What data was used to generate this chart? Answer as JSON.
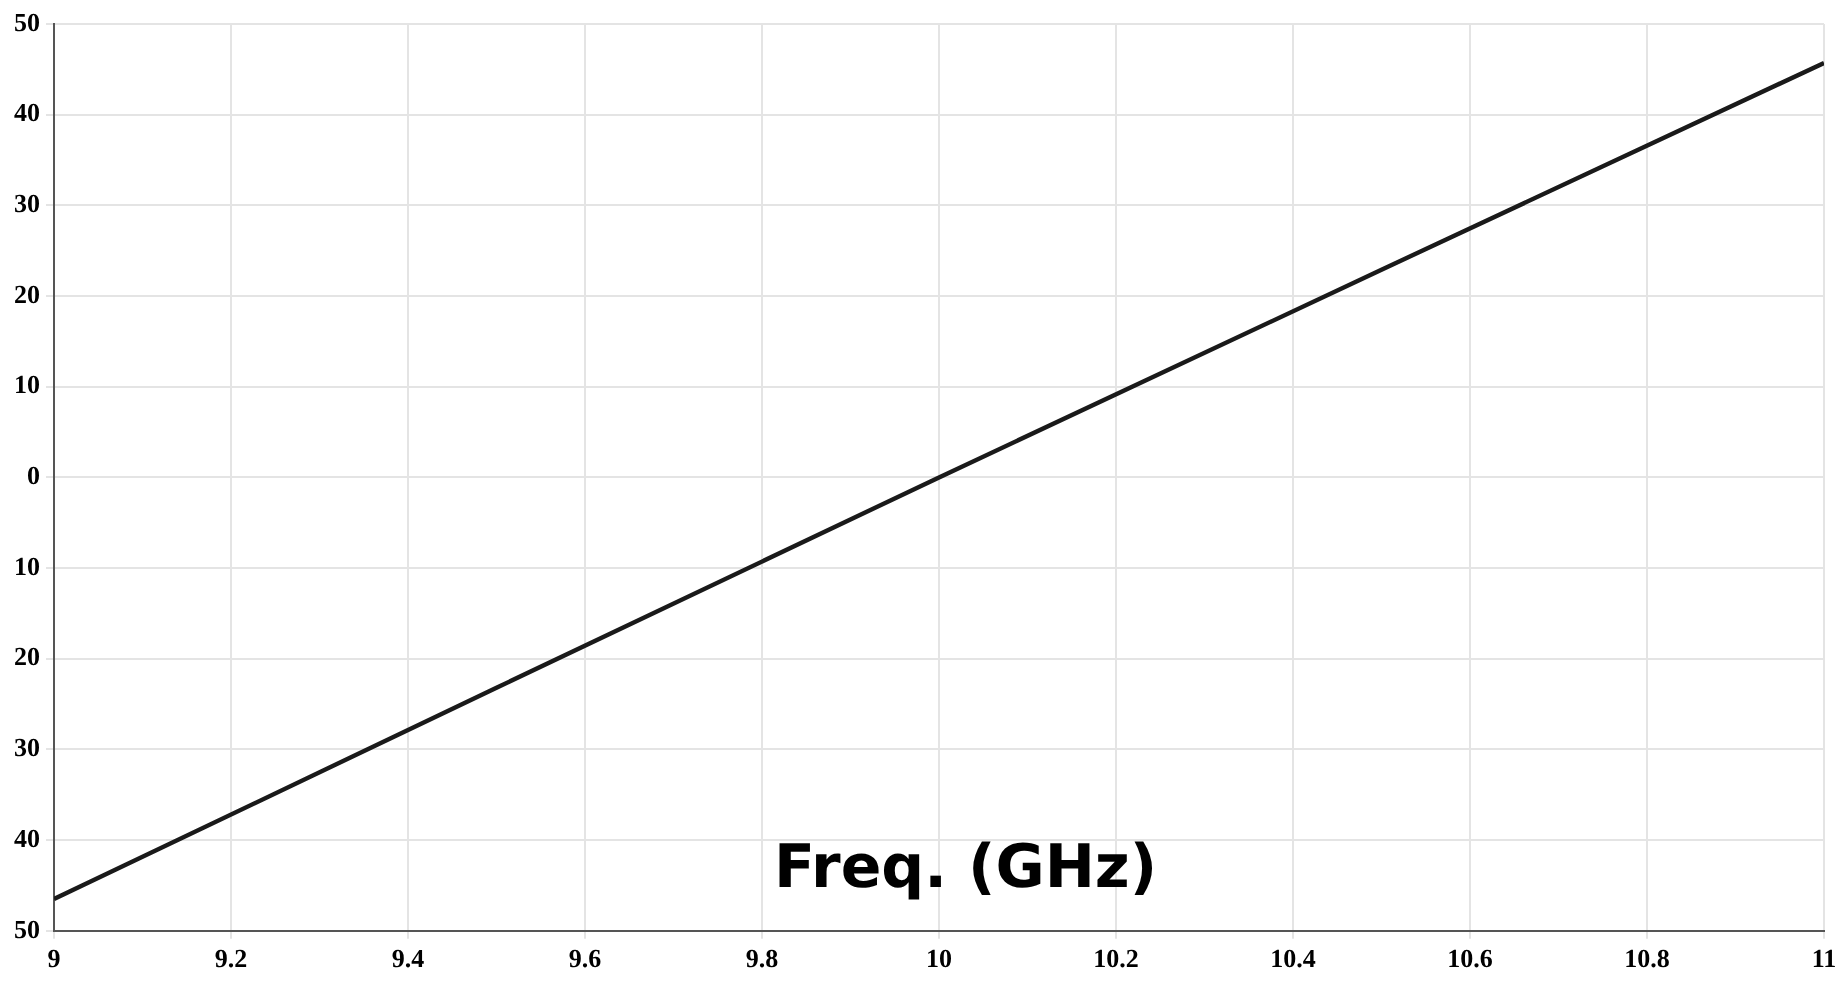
{
  "chart_data": {
    "type": "line",
    "xlabel": "Freq. (GHz)",
    "series": [
      {
        "color": "#1a1a1a",
        "x": [
          9,
          9.5,
          10,
          10.5,
          11
        ],
        "values": [
          -46.5,
          -23.2,
          0,
          22.9,
          45.7
        ]
      }
    ],
    "xlim": [
      9,
      11
    ],
    "xticks": [
      9,
      9.2,
      9.4,
      9.6,
      9.8,
      10,
      10.2,
      10.4,
      10.6,
      10.8,
      11
    ],
    "ylim": [
      -50,
      50
    ],
    "yticks": [
      {
        "value": -50,
        "label": "50"
      },
      {
        "value": -40,
        "label": "40"
      },
      {
        "value": -30,
        "label": "30"
      },
      {
        "value": -20,
        "label": "20"
      },
      {
        "value": -10,
        "label": "10"
      },
      0,
      10,
      20,
      30,
      40,
      50
    ],
    "grid": true,
    "legend": false,
    "marker": "none",
    "line_style": "solid"
  }
}
